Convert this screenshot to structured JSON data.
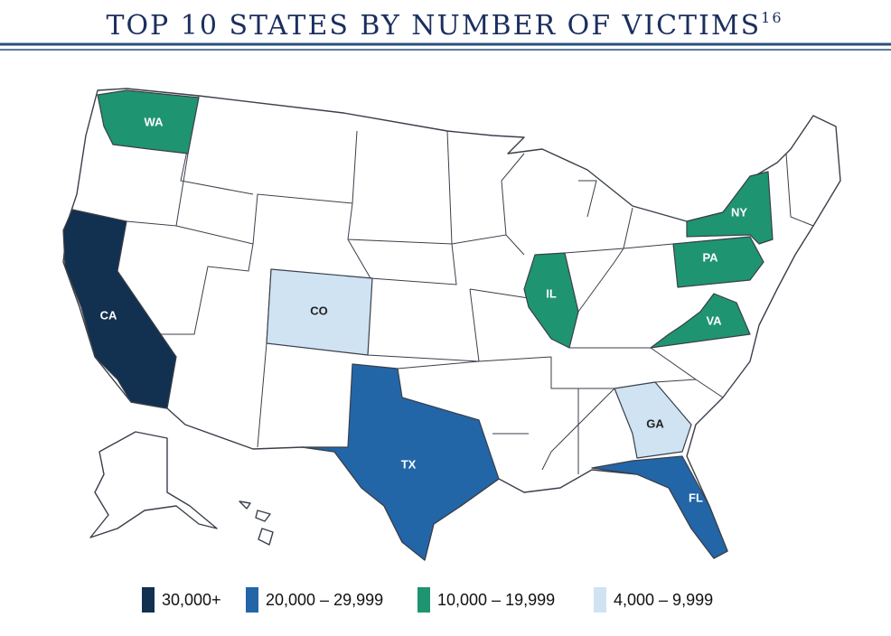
{
  "title": "TOP 10 STATES BY NUMBER OF VICTIMS",
  "title_superscript": "16",
  "legend": [
    {
      "label": "30,000+",
      "color": "#12304f"
    },
    {
      "label": "20,000 – 29,999",
      "color": "#2266a8"
    },
    {
      "label": "10,000 – 19,999",
      "color": "#1f9470"
    },
    {
      "label": "4,000 – 9,999",
      "color": "#cfe3f3"
    }
  ],
  "states": [
    {
      "label": "CA",
      "color": "#12304f"
    },
    {
      "label": "TX",
      "color": "#2266a8"
    },
    {
      "label": "FL",
      "color": "#2266a8"
    },
    {
      "label": "WA",
      "color": "#1f9470"
    },
    {
      "label": "IL",
      "color": "#1f9470"
    },
    {
      "label": "NY",
      "color": "#1f9470"
    },
    {
      "label": "PA",
      "color": "#1f9470"
    },
    {
      "label": "VA",
      "color": "#1f9470"
    },
    {
      "label": "CO",
      "color": "#cfe3f3"
    },
    {
      "label": "GA",
      "color": "#cfe3f3"
    }
  ]
}
